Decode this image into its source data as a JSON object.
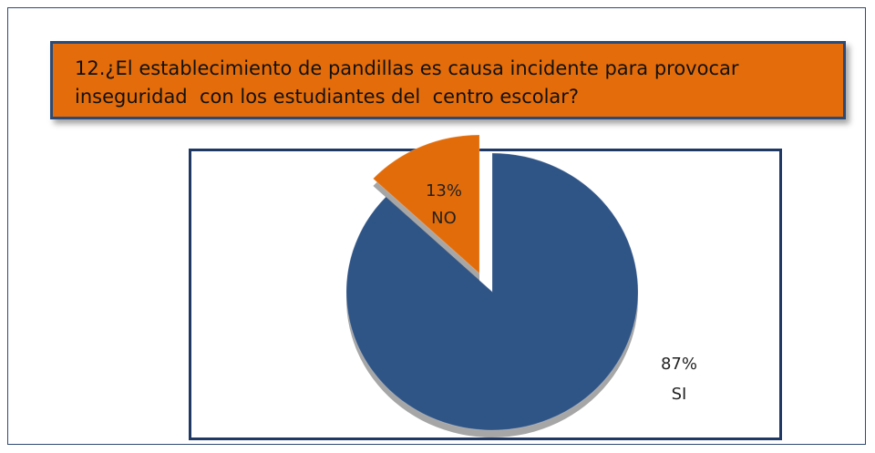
{
  "chart_data": {
    "type": "pie",
    "title": "12.¿El establecimiento de pandillas es causa incidente para provocar inseguridad  con los estudiantes del  centro escolar?",
    "categories": [
      "SI",
      "NO"
    ],
    "values": [
      87,
      13
    ],
    "value_labels": [
      "87%",
      "13%"
    ],
    "colors": [
      "#2f5486",
      "#e36c0a"
    ]
  }
}
